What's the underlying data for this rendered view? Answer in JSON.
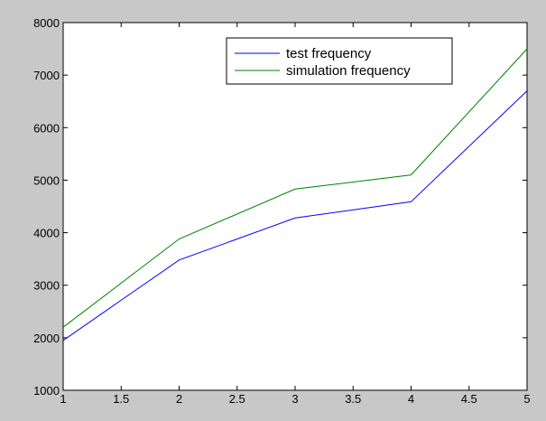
{
  "chart_data": {
    "type": "line",
    "title": "",
    "xlabel": "",
    "ylabel": "",
    "xlim": [
      1,
      5
    ],
    "ylim": [
      1000,
      8000
    ],
    "x_ticks": [
      "1",
      "1.5",
      "2",
      "2.5",
      "3",
      "3.5",
      "4",
      "4.5",
      "5"
    ],
    "y_ticks": [
      "1000",
      "2000",
      "3000",
      "4000",
      "5000",
      "6000",
      "7000",
      "8000"
    ],
    "grid": false,
    "legend_position": "top-right",
    "series": [
      {
        "name": "test frequency",
        "color": "#0000ff",
        "x": [
          1,
          2,
          3,
          4,
          5
        ],
        "y": [
          1950,
          3480,
          4280,
          4590,
          6700
        ]
      },
      {
        "name": "simulation frequency",
        "color": "#008000",
        "x": [
          1,
          2,
          3,
          4,
          5
        ],
        "y": [
          2200,
          3880,
          4830,
          5100,
          7500
        ]
      }
    ]
  }
}
